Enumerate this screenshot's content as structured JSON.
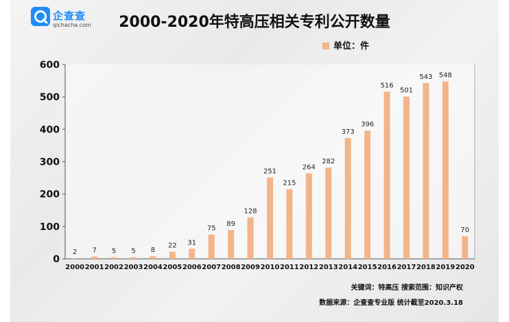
{
  "brand": {
    "name": "企查查",
    "domain": "qichacha.com"
  },
  "chart_data": {
    "type": "bar",
    "title": "2000-2020年特高压相关专利公开数量",
    "legend": {
      "label": "单位：件",
      "position": "top-right"
    },
    "categories": [
      "2000",
      "2001",
      "2002",
      "2003",
      "2004",
      "2005",
      "2006",
      "2007",
      "2008",
      "2009",
      "2010",
      "2011",
      "2012",
      "2013",
      "2014",
      "2015",
      "2016",
      "2017",
      "2018",
      "2019",
      "2020"
    ],
    "series": [
      {
        "values": [
          2,
          7,
          5,
          5,
          8,
          22,
          31,
          75,
          89,
          128,
          251,
          215,
          264,
          282,
          373,
          396,
          516,
          501,
          543,
          548,
          70
        ]
      }
    ],
    "ylim": [
      0,
      600
    ],
    "yticks": [
      "0",
      "100",
      "200",
      "300",
      "400",
      "500",
      "600"
    ],
    "xlabel": "",
    "ylabel": "",
    "data_labels": true,
    "grid": false,
    "bar_color": "#f3b48a"
  },
  "footer": {
    "keywords": "关键词：特高压  搜索范围：知识产权",
    "source": "数据来源：企查查专业版  统计截至2020.3.18"
  }
}
